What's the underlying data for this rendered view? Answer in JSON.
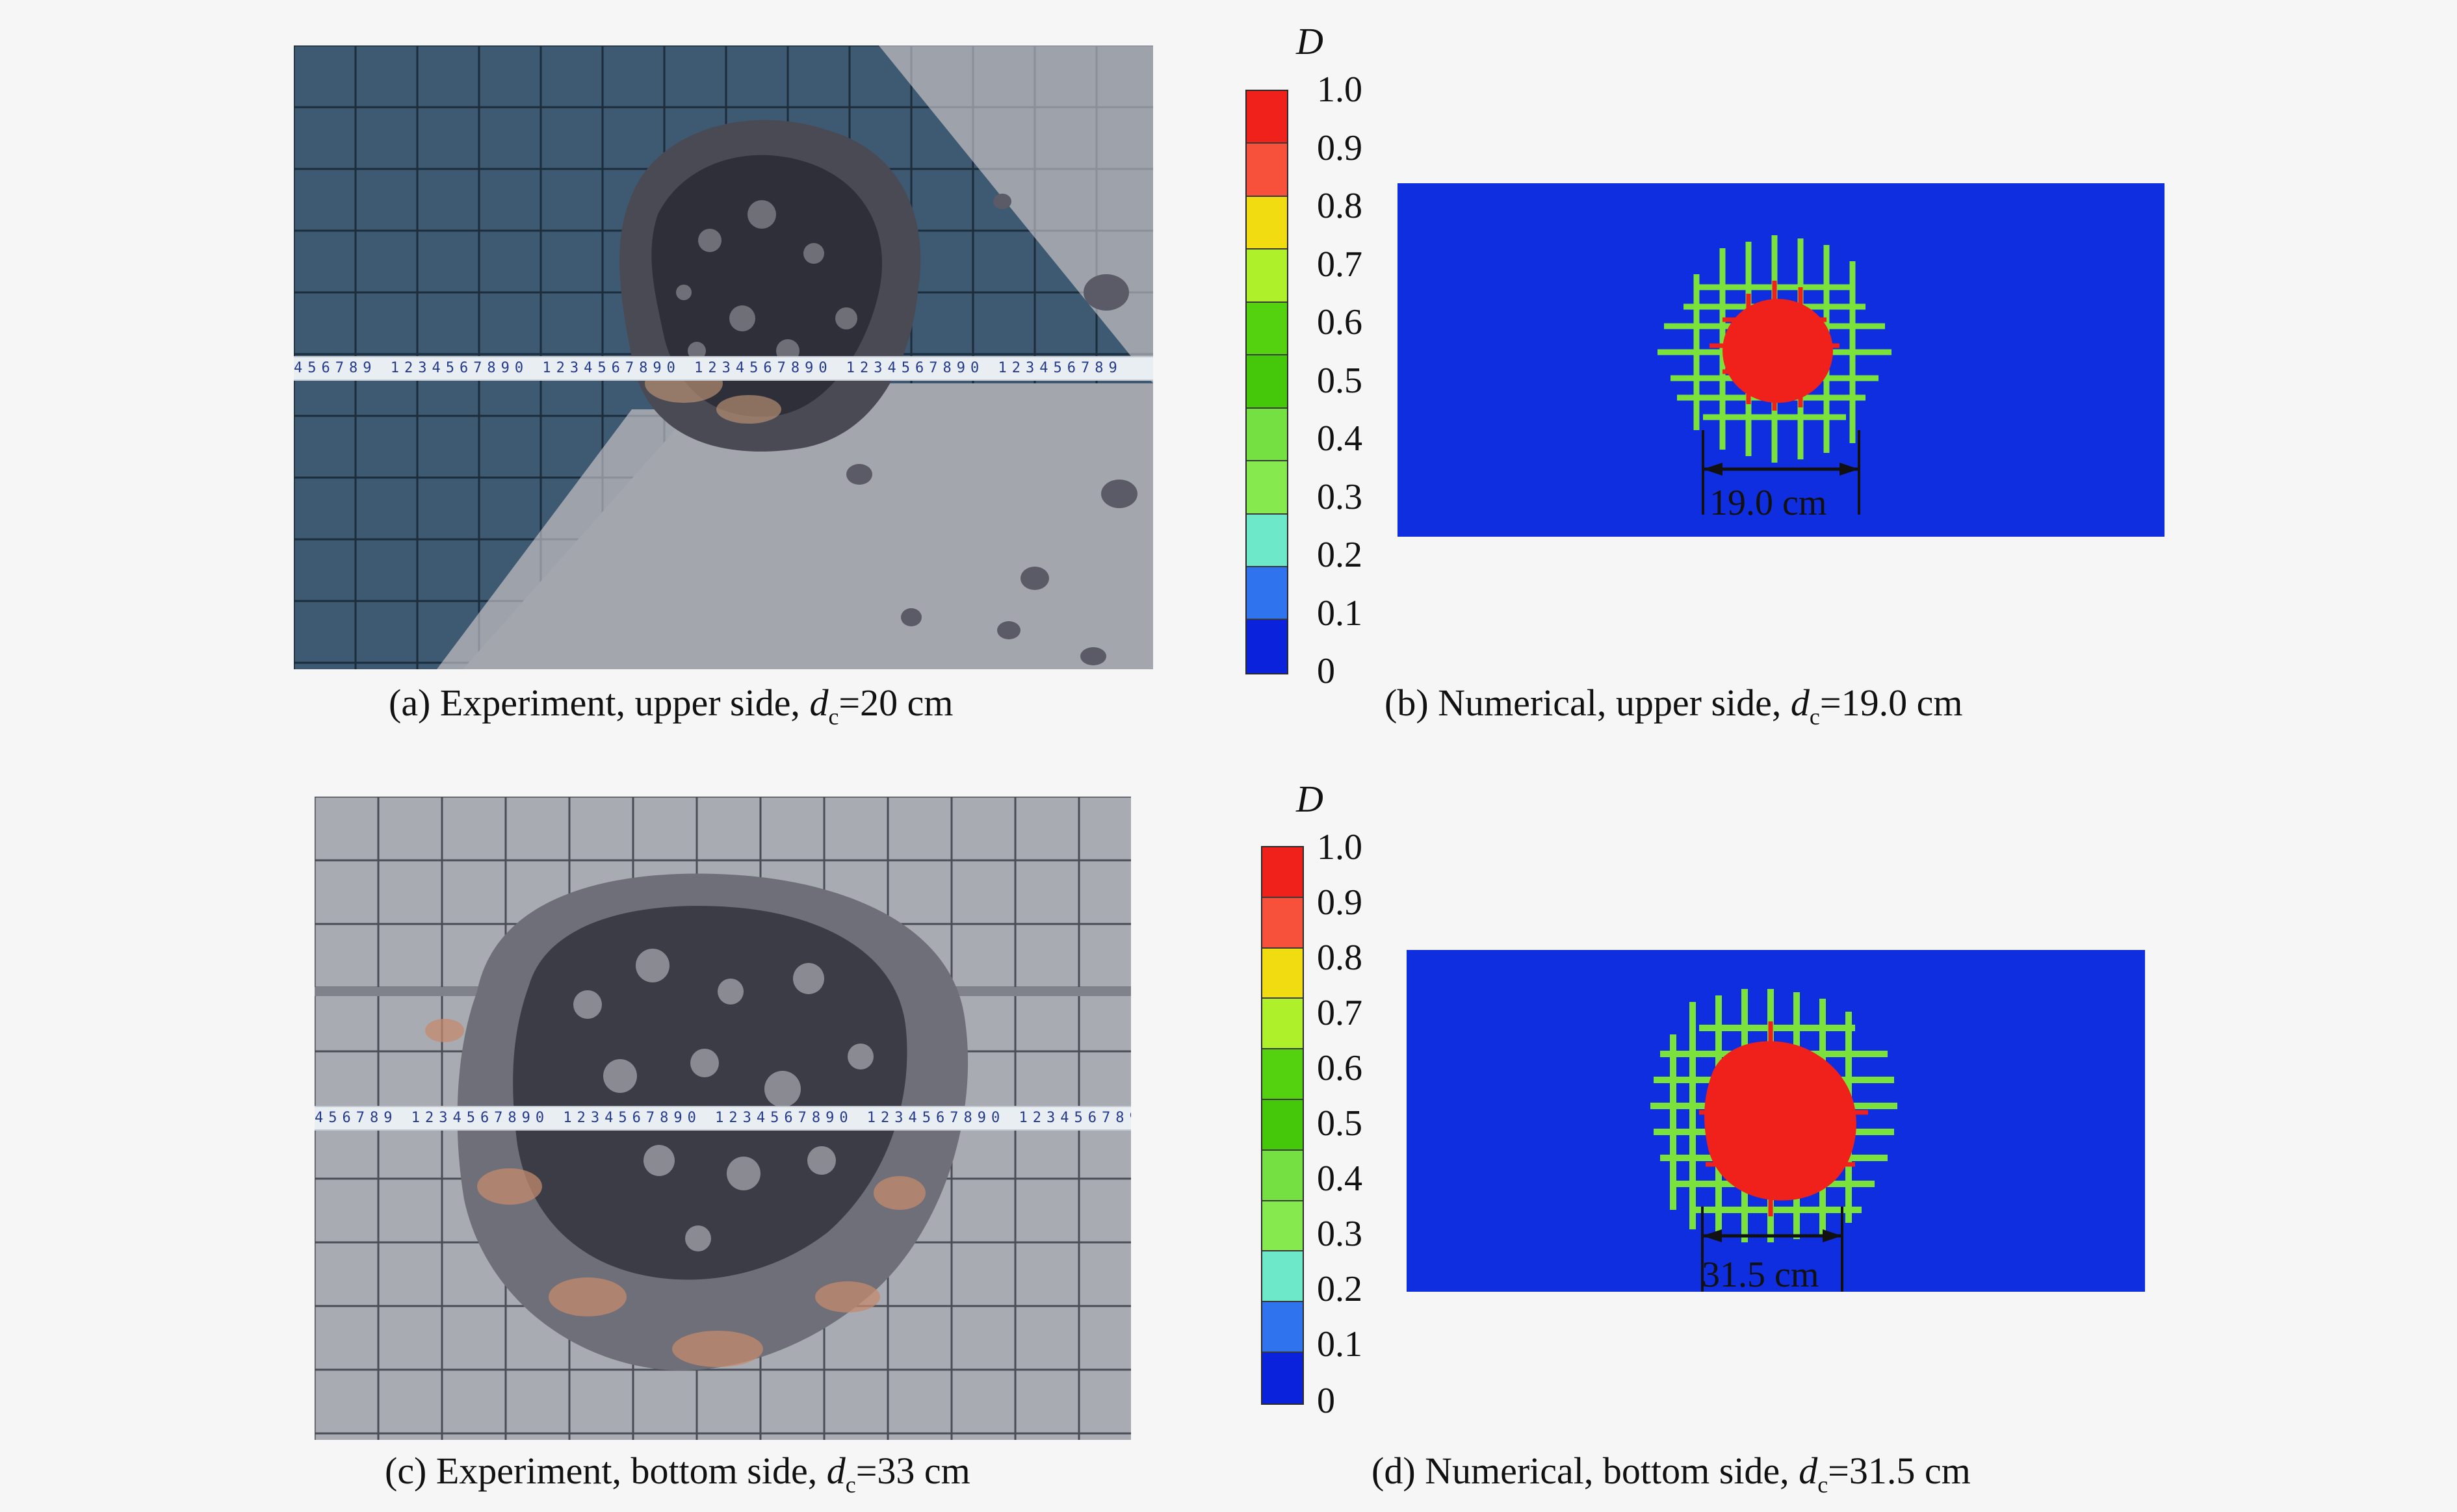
{
  "panels": {
    "a": {
      "prefix": "(a)  Experiment, upper side, ",
      "var": "d",
      "sub": "c",
      "suffix": "=20 cm"
    },
    "b": {
      "prefix": "(b) Numerical, upper side, ",
      "var": "d",
      "sub": "c",
      "suffix": "=19.0 cm",
      "dimension": "19.0 cm"
    },
    "c": {
      "prefix": "(c) Experiment, bottom side, ",
      "var": "d",
      "sub": "c",
      "suffix": "=33 cm"
    },
    "d": {
      "prefix": "(d) Numerical, bottom side, ",
      "var": "d",
      "sub": "c",
      "suffix": "=31.5 cm",
      "dimension": "31.5 cm"
    }
  },
  "colorbar": {
    "label": "D",
    "ticks": [
      "1.0",
      "0.9",
      "0.8",
      "0.7",
      "0.6",
      "0.5",
      "0.4",
      "0.3",
      "0.2",
      "0.1",
      "0"
    ],
    "colors": [
      "#f0201a",
      "#f7513c",
      "#f1dc12",
      "#aef02a",
      "#55d20f",
      "#46c80a",
      "#74e041",
      "#86ea4e",
      "#6de8c8",
      "#3073ef",
      "#0a22dc"
    ]
  },
  "tape_text": "456789 1234567890 1234567890 1234567890 1234567890 123456789"
}
